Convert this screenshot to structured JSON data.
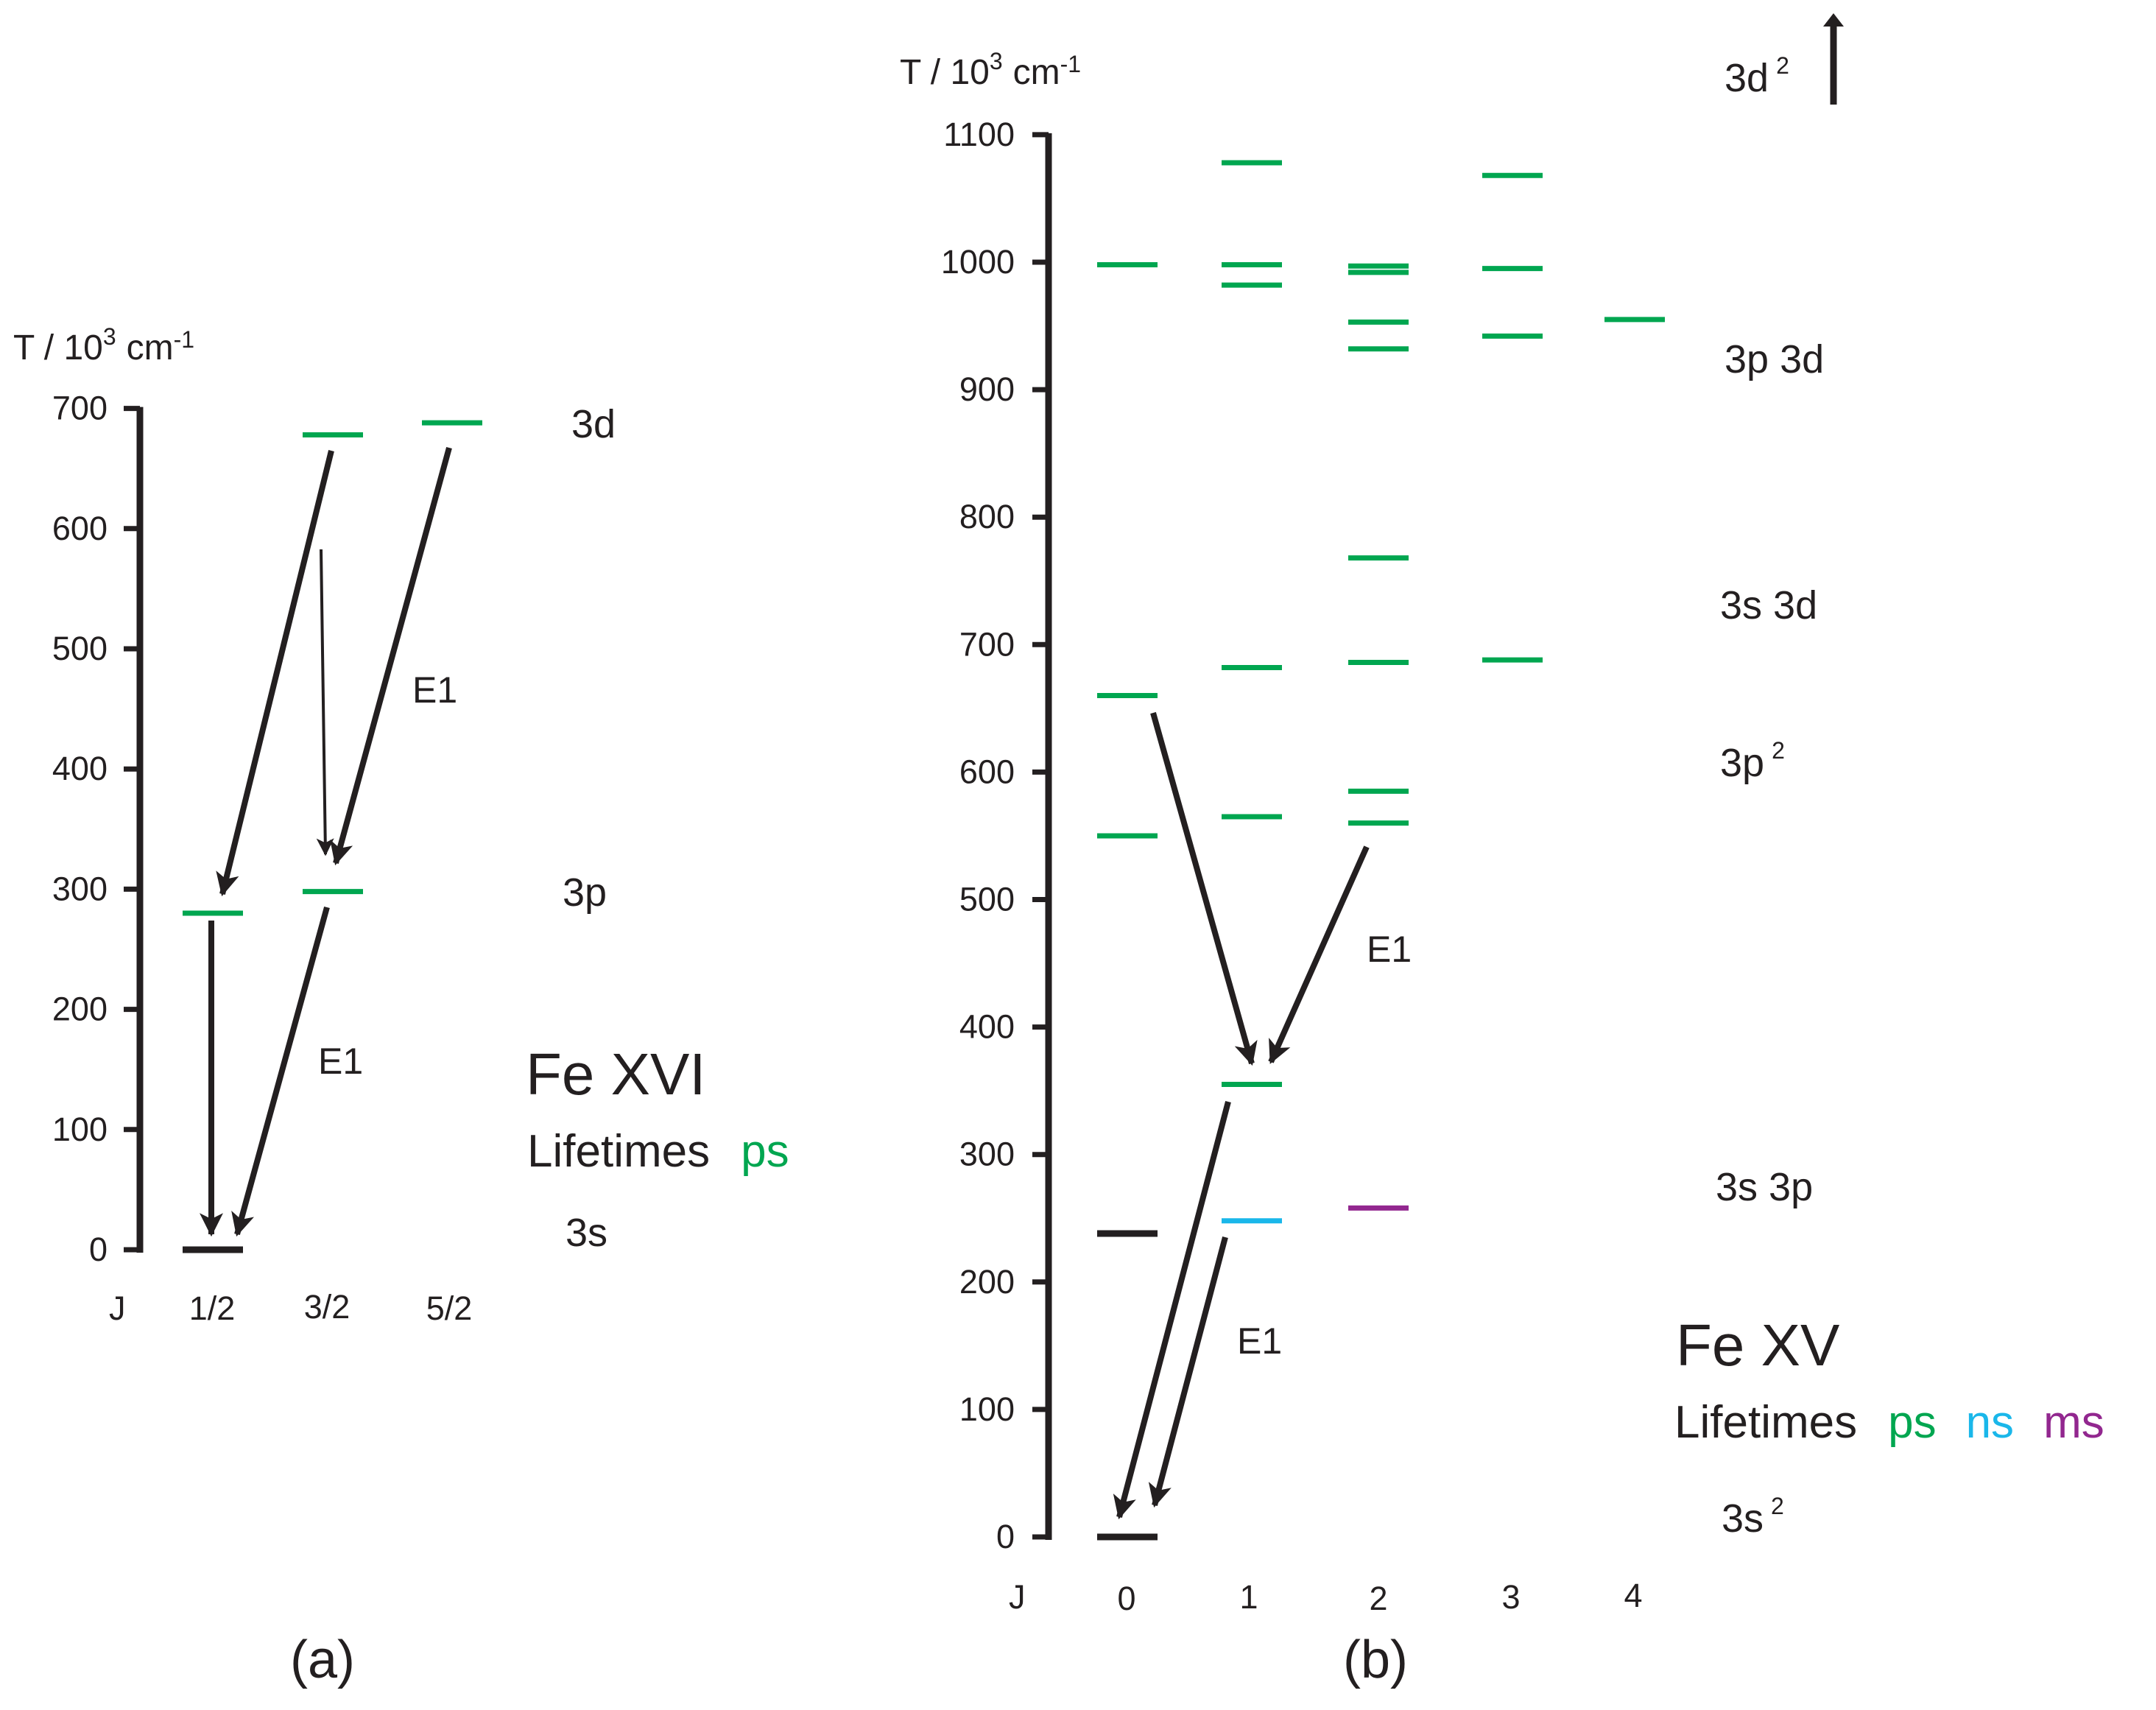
{
  "colors": {
    "ink": "#231f20",
    "ps": "#00a650",
    "ns": "#1ab7ea",
    "ms": "#92278f"
  },
  "panel_a": {
    "panel_label": "(a)",
    "ion": "Fe XVI",
    "lifetimes_label": "Lifetimes",
    "lifetime_ps": "ps",
    "axis_title": "T / 10",
    "axis_title_exp": "3",
    "axis_title_unit": "cm",
    "axis_title_unit_exp": "-1",
    "y_ticks": [
      "0",
      "100",
      "200",
      "300",
      "400",
      "500",
      "600",
      "700"
    ],
    "j_label": "J",
    "j_values": [
      "1/2",
      "3/2",
      "5/2"
    ],
    "terms": [
      {
        "label": "3d",
        "sup": ""
      },
      {
        "label": "3p",
        "sup": ""
      },
      {
        "label": "3s",
        "sup": ""
      }
    ],
    "transition_labels": [
      "E1",
      "E1"
    ]
  },
  "panel_b": {
    "panel_label": "(b)",
    "ion": "Fe XV",
    "lifetimes_label": "Lifetimes",
    "lifetime_ps": "ps",
    "lifetime_ns": "ns",
    "lifetime_ms": "ms",
    "axis_title": "T / 10",
    "axis_title_exp": "3",
    "axis_title_unit": "cm",
    "axis_title_unit_exp": "-1",
    "y_ticks": [
      "0",
      "100",
      "200",
      "300",
      "400",
      "500",
      "600",
      "700",
      "800",
      "900",
      "1000",
      "1100"
    ],
    "j_label": "J",
    "j_values": [
      "0",
      "1",
      "2",
      "3",
      "4"
    ],
    "terms": [
      {
        "label": "3d",
        "sup": "2"
      },
      {
        "label": "3p 3d",
        "sup": ""
      },
      {
        "label": "3s 3d",
        "sup": ""
      },
      {
        "label": "3p",
        "sup": "2"
      },
      {
        "label": "3s 3p",
        "sup": ""
      },
      {
        "label": "3s",
        "sup": "2"
      }
    ],
    "transition_labels": [
      "E1",
      "E1"
    ]
  },
  "chart_data": [
    {
      "type": "energy-level-diagram",
      "title": "Fe XVI",
      "ylabel": "T / 10^3 cm^-1",
      "xlabel": "J",
      "ylim": [
        0,
        700
      ],
      "categories": [
        "1/2",
        "3/2",
        "5/2"
      ],
      "levels": [
        {
          "J": "1/2",
          "T": 0,
          "lifetime": "stable",
          "term": "3s"
        },
        {
          "J": "1/2",
          "T": 280,
          "lifetime": "ps",
          "term": "3p"
        },
        {
          "J": "3/2",
          "T": 298,
          "lifetime": "ps",
          "term": "3p"
        },
        {
          "J": "3/2",
          "T": 678,
          "lifetime": "ps",
          "term": "3d"
        },
        {
          "J": "5/2",
          "T": 688,
          "lifetime": "ps",
          "term": "3d"
        }
      ],
      "transitions": [
        {
          "from": {
            "J": "3/2",
            "T": 678
          },
          "to": {
            "J": "1/2",
            "T": 280
          }
        },
        {
          "from": {
            "J": "3/2",
            "T": 580
          },
          "to": {
            "J": "3/2",
            "T": 298
          }
        },
        {
          "from": {
            "J": "5/2",
            "T": 688
          },
          "to": {
            "J": "3/2",
            "T": 298
          },
          "label": "E1"
        },
        {
          "from": {
            "J": "1/2",
            "T": 280
          },
          "to": {
            "J": "1/2",
            "T": 0
          }
        },
        {
          "from": {
            "J": "3/2",
            "T": 298
          },
          "to": {
            "J": "1/2",
            "T": 0
          },
          "label": "E1"
        }
      ]
    },
    {
      "type": "energy-level-diagram",
      "title": "Fe XV",
      "ylabel": "T / 10^3 cm^-1",
      "xlabel": "J",
      "ylim": [
        0,
        1100
      ],
      "categories": [
        "0",
        "1",
        "2",
        "3",
        "4"
      ],
      "levels": [
        {
          "J": "0",
          "T": 0,
          "lifetime": "stable",
          "term": "3s2"
        },
        {
          "J": "0",
          "T": 238,
          "lifetime": "stable",
          "term": "3s 3p"
        },
        {
          "J": "1",
          "T": 248,
          "lifetime": "ns",
          "term": "3s 3p"
        },
        {
          "J": "2",
          "T": 258,
          "lifetime": "ms",
          "term": "3s 3p"
        },
        {
          "J": "1",
          "T": 355,
          "lifetime": "ps",
          "term": "3s 3p"
        },
        {
          "J": "0",
          "T": 550,
          "lifetime": "ps",
          "term": "3p2"
        },
        {
          "J": "0",
          "T": 660,
          "lifetime": "ps",
          "term": "3p2"
        },
        {
          "J": "1",
          "T": 565,
          "lifetime": "ps",
          "term": "3p2"
        },
        {
          "J": "2",
          "T": 560,
          "lifetime": "ps",
          "term": "3p2"
        },
        {
          "J": "2",
          "T": 585,
          "lifetime": "ps",
          "term": "3p2"
        },
        {
          "J": "1",
          "T": 682,
          "lifetime": "ps",
          "term": "3s 3d"
        },
        {
          "J": "2",
          "T": 686,
          "lifetime": "ps",
          "term": "3s 3d"
        },
        {
          "J": "3",
          "T": 688,
          "lifetime": "ps",
          "term": "3s 3d"
        },
        {
          "J": "2",
          "T": 768,
          "lifetime": "ps",
          "term": "3s 3d"
        },
        {
          "J": "2",
          "T": 932,
          "lifetime": "ps",
          "term": "3p 3d"
        },
        {
          "J": "2",
          "T": 953,
          "lifetime": "ps",
          "term": "3p 3d"
        },
        {
          "J": "2",
          "T": 992,
          "lifetime": "ps",
          "term": "3p 3d"
        },
        {
          "J": "2",
          "T": 997,
          "lifetime": "ps",
          "term": "3p 3d"
        },
        {
          "J": "3",
          "T": 942,
          "lifetime": "ps",
          "term": "3p 3d"
        },
        {
          "J": "3",
          "T": 995,
          "lifetime": "ps",
          "term": "3p 3d"
        },
        {
          "J": "3",
          "T": 1068,
          "lifetime": "ps",
          "term": "3p 3d"
        },
        {
          "J": "4",
          "T": 955,
          "lifetime": "ps",
          "term": "3p 3d"
        },
        {
          "J": "1",
          "T": 982,
          "lifetime": "ps",
          "term": "3p 3d"
        },
        {
          "J": "1",
          "T": 998,
          "lifetime": "ps",
          "term": "3p 3d"
        },
        {
          "J": "1",
          "T": 1078,
          "lifetime": "ps",
          "term": "3p 3d"
        },
        {
          "J": "0",
          "T": 998,
          "lifetime": "ps",
          "term": "3p 3d"
        }
      ],
      "transitions": [
        {
          "from": {
            "J": "0",
            "T": 660
          },
          "to": {
            "J": "1",
            "T": 355
          }
        },
        {
          "from": {
            "J": "2",
            "T": 560
          },
          "to": {
            "J": "1",
            "T": 355
          },
          "label": "E1"
        },
        {
          "from": {
            "J": "1",
            "T": 355
          },
          "to": {
            "J": "0",
            "T": 0
          }
        },
        {
          "from": {
            "J": "1",
            "T": 248
          },
          "to": {
            "J": "0",
            "T": 0
          },
          "label": "E1"
        }
      ]
    }
  ]
}
